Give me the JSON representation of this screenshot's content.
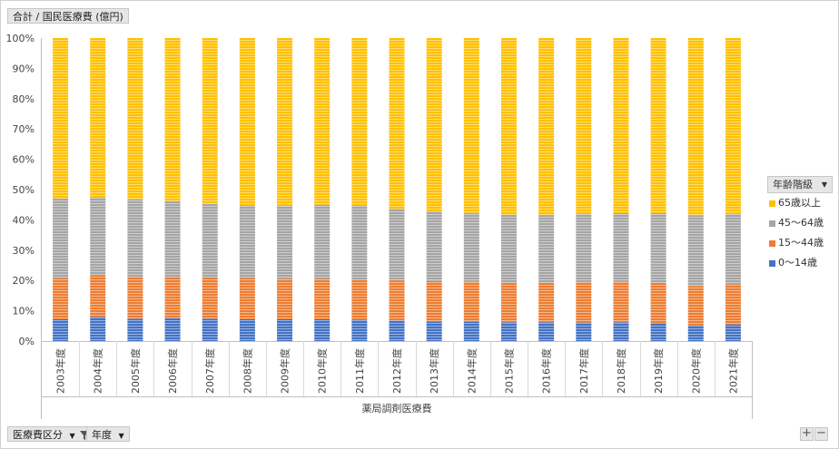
{
  "header": {
    "value_field": "合計 / 国民医療費 (億円)"
  },
  "footer": {
    "filter_field": "医療費区分",
    "axis_field": "年度",
    "zoom_in": "+",
    "zoom_out": "−"
  },
  "legend": {
    "title": "年齢階級",
    "items": [
      {
        "label": "65歳以上",
        "color": "#FFC000"
      },
      {
        "label": "45〜64歳",
        "color": "#A5A5A5"
      },
      {
        "label": "15〜44歳",
        "color": "#ED7D31"
      },
      {
        "label": "0〜14歳",
        "color": "#4472C4"
      }
    ]
  },
  "chart_data": {
    "type": "bar",
    "stacked": "percent",
    "category_group": "薬局調剤医療費",
    "categories": [
      "2003年度",
      "2004年度",
      "2005年度",
      "2006年度",
      "2007年度",
      "2008年度",
      "2009年度",
      "2010年度",
      "2011年度",
      "2012年度",
      "2013年度",
      "2014年度",
      "2015年度",
      "2016年度",
      "2017年度",
      "2018年度",
      "2019年度",
      "2020年度",
      "2021年度"
    ],
    "yticks": [
      "0%",
      "10%",
      "20%",
      "30%",
      "40%",
      "50%",
      "60%",
      "70%",
      "80%",
      "90%",
      "100%"
    ],
    "ylim": [
      0,
      100
    ],
    "grid": false,
    "legend_position": "right",
    "series": [
      {
        "name": "0〜14歳",
        "color": "#4472C4",
        "values": [
          7.2,
          8.0,
          7.4,
          7.5,
          7.4,
          7.2,
          7.2,
          7.2,
          7.1,
          6.8,
          6.5,
          6.4,
          6.2,
          6.2,
          6.1,
          6.2,
          6.0,
          5.1,
          5.5
        ]
      },
      {
        "name": "15〜44歳",
        "color": "#ED7D31",
        "values": [
          13.6,
          13.7,
          13.8,
          13.7,
          13.6,
          13.6,
          13.4,
          13.3,
          13.2,
          13.3,
          13.3,
          13.1,
          13.0,
          13.0,
          13.3,
          13.3,
          13.2,
          13.1,
          13.2
        ]
      },
      {
        "name": "45〜64歳",
        "color": "#A5A5A5",
        "values": [
          26.2,
          25.8,
          25.6,
          25.0,
          24.3,
          24.0,
          24.0,
          24.5,
          24.5,
          23.6,
          23.0,
          22.8,
          22.5,
          22.4,
          22.5,
          22.7,
          23.0,
          23.3,
          23.3
        ]
      },
      {
        "name": "65歳以上",
        "color": "#FFC000",
        "values": [
          53.0,
          52.5,
          53.2,
          53.8,
          54.7,
          55.2,
          55.4,
          55.0,
          55.2,
          56.3,
          57.2,
          57.7,
          58.3,
          58.4,
          58.1,
          57.8,
          57.8,
          58.5,
          58.0
        ]
      }
    ]
  }
}
